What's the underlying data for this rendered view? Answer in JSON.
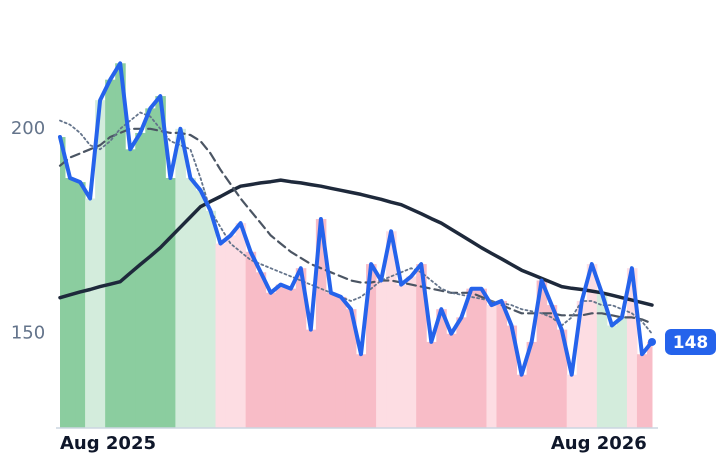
{
  "chart_data": {
    "type": "line",
    "categories": [
      "Aug 2025",
      null,
      null,
      null,
      null,
      null,
      null,
      null,
      null,
      null,
      null,
      null,
      null,
      null,
      null,
      null,
      null,
      null,
      null,
      null,
      null,
      null,
      null,
      null,
      null,
      null,
      null,
      null,
      null,
      null,
      null,
      null,
      null,
      null,
      null,
      null,
      null,
      null,
      null,
      null,
      null,
      null,
      null,
      null,
      null,
      null,
      null,
      null,
      null,
      null,
      null,
      null,
      null,
      null,
      "Aug 2026",
      null,
      null,
      null,
      null,
      null
    ],
    "series": [
      {
        "color": "#f8c0cb",
        "style": "bands",
        "band_colors": [
          "#8bcd9f",
          "#8bcd9f",
          "#8bcd9f",
          "#d3ecdc",
          "#d3ecdc",
          "#8bcd9f",
          "#8bcd9f",
          "#8bcd9f",
          "#8bcd9f",
          "#8bcd9f",
          "#8bcd9f",
          "#8bcd9f",
          "#d3ecdc",
          "#d3ecdc",
          "#d3ecdc",
          "#d3ecdc",
          "#fddde3",
          "#fddde3",
          "#fddde3",
          "#f8bcc7",
          "#f8bcc7",
          "#f8bcc7",
          "#f8bcc7",
          "#f8bcc7",
          "#f8bcc7",
          "#f8bcc7",
          "#f8bcc7",
          "#f8bcc7",
          "#f8bcc7",
          "#f8bcc7",
          "#f8bcc7",
          "#f8bcc7",
          "#fddde3",
          "#fddde3",
          "#fddde3",
          "#fddde3",
          "#f8bcc7",
          "#f8bcc7",
          "#f8bcc7",
          "#f8bcc7",
          "#f8bcc7",
          "#f8bcc7",
          "#f8bcc7",
          "#fddde3",
          "#f8bcc7",
          "#f8bcc7",
          "#f8bcc7",
          "#f8bcc7",
          "#f8bcc7",
          "#f8bcc7",
          "#f8bcc7",
          "#fddde3",
          "#fddde3",
          "#fddde3",
          "#d3ecdc",
          "#d3ecdc",
          "#d3ecdc",
          "#fddde3",
          "#f8bcc7",
          "#f8bcc7"
        ]
      },
      {
        "color": "#1e293b",
        "style": "solid",
        "values": [
          158.8,
          159.5,
          160.2,
          160.8,
          161.5,
          162.1,
          162.7,
          164.8,
          166.9,
          168.9,
          171,
          173.5,
          176,
          178.5,
          181,
          182.3,
          183.5,
          184.8,
          186,
          186.4,
          186.8,
          187.1,
          187.5,
          187.1,
          186.8,
          186.4,
          186,
          185.5,
          185,
          184.5,
          184,
          183.4,
          182.8,
          182.1,
          181.5,
          180.4,
          179.3,
          178.1,
          177,
          175.5,
          174,
          172.5,
          171,
          169.6,
          168.3,
          166.9,
          165.5,
          164.5,
          163.5,
          162.5,
          161.5,
          161.1,
          160.8,
          160.4,
          160,
          159.4,
          158.8,
          158.2,
          157.6,
          157
        ]
      },
      {
        "color": "#4b5563",
        "style": "dashed",
        "values": [
          191,
          193,
          194,
          195,
          196,
          198,
          199,
          200,
          200,
          200,
          199.5,
          199,
          199,
          198.5,
          197,
          194,
          190,
          186.5,
          183,
          180,
          177,
          174,
          172,
          170,
          168.5,
          167,
          166,
          165,
          164,
          163,
          162.5,
          162.5,
          163,
          163,
          162.5,
          162,
          161.5,
          161,
          160.5,
          160,
          160,
          160,
          159,
          158,
          157,
          156,
          155,
          155,
          155,
          155,
          154.5,
          154.5,
          154.5,
          155,
          155,
          154.5,
          154,
          154,
          153.5,
          152.5
        ]
      },
      {
        "color": "#64748b",
        "style": "dotted",
        "values": [
          202,
          201,
          199,
          196,
          195,
          197,
          200,
          202,
          204,
          203,
          200,
          197,
          196,
          195,
          188,
          180,
          176,
          172,
          170,
          168,
          167,
          166,
          165,
          164,
          163,
          162,
          161,
          160,
          159,
          158,
          159,
          161,
          163,
          164,
          165,
          166,
          165,
          163,
          161,
          160,
          159.5,
          159,
          158.5,
          158,
          157.5,
          157,
          156,
          155.5,
          155,
          154,
          152,
          154,
          158,
          158,
          157,
          157,
          156,
          155,
          153,
          150
        ]
      },
      {
        "color": "#2563eb",
        "style": "price",
        "values": [
          198,
          188,
          187,
          183,
          207,
          212,
          216,
          195,
          199,
          205,
          208,
          188,
          200,
          188,
          185,
          180,
          172,
          174,
          177,
          170,
          165,
          160,
          162,
          161,
          166,
          151,
          178,
          160,
          159,
          156,
          145,
          167,
          163,
          175,
          162,
          164,
          167,
          148,
          156,
          150,
          154,
          161,
          161,
          157,
          158,
          152,
          140,
          148,
          163,
          157,
          151,
          140,
          158,
          167,
          160,
          152,
          154,
          166,
          145,
          148
        ]
      }
    ],
    "ylim": [
      127,
      229
    ],
    "yticks": [
      150,
      200
    ]
  }
}
